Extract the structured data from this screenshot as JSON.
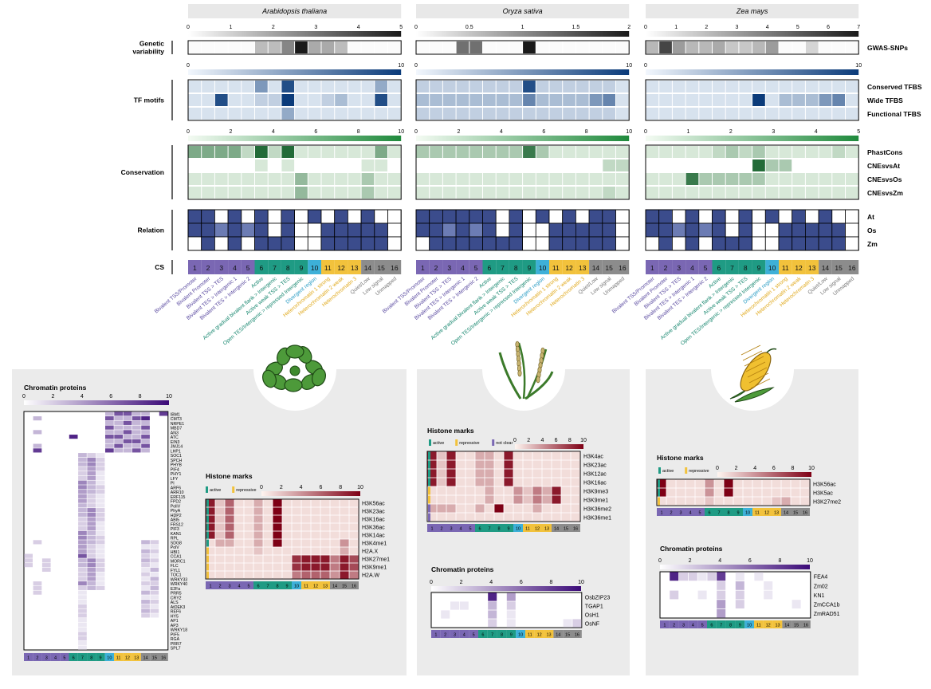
{
  "species": [
    {
      "name": "Arabidopsis thaliana",
      "gwas_ticks": [
        "0",
        "1",
        "2",
        "3",
        "4",
        "5"
      ],
      "gwas_max": 6,
      "gwas": [
        0,
        0,
        0,
        0,
        0,
        1.5,
        1.5,
        3,
        6,
        2,
        2,
        1.5,
        0,
        0,
        0,
        0
      ],
      "tf_ticks": [
        "0",
        "10"
      ],
      "tf": [
        [
          1,
          1,
          1,
          1,
          1,
          5,
          1,
          9,
          1,
          1,
          1,
          1,
          1,
          1,
          4,
          1
        ],
        [
          1,
          1,
          9,
          1,
          1,
          2,
          2,
          10,
          1,
          1,
          2,
          3,
          1,
          1,
          9,
          1
        ],
        [
          1,
          1,
          1,
          1,
          1,
          1,
          1,
          4,
          1,
          1,
          1,
          1,
          1,
          1,
          1,
          1
        ]
      ],
      "cons_ticks": [
        "0",
        "2",
        "4",
        "6",
        "8",
        "10"
      ],
      "cons": [
        [
          5,
          5,
          5,
          5,
          2,
          9,
          2,
          9,
          1,
          1,
          1,
          1,
          1,
          1,
          5,
          1
        ],
        [
          0,
          0,
          0,
          0,
          0,
          1,
          0,
          1,
          0,
          0,
          0,
          0,
          0,
          1,
          1,
          0
        ],
        [
          1,
          1,
          1,
          1,
          1,
          1,
          1,
          1,
          4,
          1,
          1,
          1,
          1,
          3,
          1,
          1
        ],
        [
          1,
          1,
          1,
          1,
          1,
          1,
          1,
          1,
          4,
          1,
          1,
          1,
          1,
          3,
          1,
          1
        ]
      ],
      "relation": [
        [
          1,
          1,
          0,
          1,
          0,
          1,
          0,
          1,
          0,
          1,
          0,
          1,
          0,
          1,
          0,
          0
        ],
        [
          1,
          1,
          0.5,
          1,
          0.5,
          1,
          0,
          1,
          0,
          0,
          1,
          1,
          1,
          1,
          1,
          0
        ],
        [
          0,
          1,
          0,
          1,
          0,
          1,
          1,
          1,
          0,
          0,
          1,
          1,
          1,
          1,
          1,
          0
        ]
      ]
    },
    {
      "name": "Oryza sativa",
      "gwas_ticks": [
        "0",
        "0.5",
        "1",
        "1.5",
        "2"
      ],
      "gwas_max": 2.5,
      "gwas": [
        0,
        0,
        0,
        1.5,
        1.5,
        0,
        0,
        0,
        6,
        0,
        0,
        0,
        0,
        0,
        0,
        0
      ],
      "tf_ticks": [
        "0",
        "10"
      ],
      "tf": [
        [
          2,
          2,
          2,
          2,
          2,
          2,
          2,
          2,
          9,
          2,
          2,
          2,
          2,
          2,
          2,
          1
        ],
        [
          3,
          3,
          3,
          3,
          3,
          3,
          3,
          3,
          6,
          3,
          3,
          3,
          3,
          5,
          6,
          1
        ],
        [
          2,
          2,
          2,
          2,
          2,
          2,
          2,
          2,
          2,
          2,
          2,
          2,
          2,
          2,
          2,
          1
        ]
      ],
      "cons_ticks": [
        "0",
        "2",
        "4",
        "6",
        "8",
        "10"
      ],
      "cons": [
        [
          3,
          3,
          3,
          3,
          3,
          3,
          3,
          3,
          8,
          3,
          1,
          1,
          1,
          1,
          1,
          1
        ],
        [
          0,
          0,
          0,
          0,
          0,
          0,
          0,
          0,
          0,
          0,
          0,
          0,
          0,
          0,
          2,
          2
        ],
        [
          1,
          1,
          1,
          1,
          1,
          1,
          1,
          1,
          1,
          1,
          1,
          1,
          1,
          1,
          1,
          1
        ],
        [
          1,
          1,
          1,
          1,
          1,
          1,
          1,
          1,
          1,
          1,
          1,
          1,
          1,
          1,
          2,
          1
        ]
      ],
      "relation": [
        [
          1,
          1,
          1,
          1,
          1,
          1,
          0,
          1,
          0,
          1,
          0,
          1,
          0,
          1,
          1,
          0
        ],
        [
          1,
          1,
          0.5,
          1,
          0.5,
          1,
          0,
          1,
          0,
          0,
          1,
          1,
          1,
          1,
          1,
          0
        ],
        [
          0,
          1,
          1,
          1,
          1,
          1,
          1,
          1,
          0,
          0,
          1,
          1,
          1,
          1,
          1,
          0
        ]
      ]
    },
    {
      "name": "Zea mays",
      "gwas_ticks": [
        "0",
        "1",
        "2",
        "3",
        "4",
        "5",
        "6",
        "7"
      ],
      "gwas_max": 7.5,
      "gwas": [
        2,
        6,
        3,
        2,
        2,
        2.5,
        1.5,
        1.5,
        2,
        3,
        0,
        0,
        1,
        0,
        0,
        0
      ],
      "tf_ticks": [
        "0",
        "10"
      ],
      "tf": [
        [
          1,
          1,
          1,
          1,
          1,
          1,
          1,
          1,
          1,
          1,
          1,
          1,
          1,
          1,
          1,
          1
        ],
        [
          1,
          1,
          1,
          1,
          1,
          1,
          1,
          1,
          10,
          1,
          3,
          3,
          3,
          5,
          6,
          1
        ],
        [
          1,
          1,
          1,
          1,
          1,
          1,
          1,
          1,
          1,
          1,
          1,
          1,
          1,
          1,
          1,
          1
        ]
      ],
      "cons_ticks": [
        "0",
        "1",
        "2",
        "3",
        "4",
        "5"
      ],
      "cons": [
        [
          1,
          1,
          1,
          1,
          1,
          2,
          3,
          2,
          3,
          1,
          1,
          1,
          1,
          1,
          2,
          1
        ],
        [
          0,
          0,
          0,
          0,
          0,
          0,
          0,
          0,
          9,
          3,
          3,
          0,
          0,
          0,
          0,
          0
        ],
        [
          1,
          1,
          1,
          8,
          3,
          3,
          3,
          3,
          3,
          1,
          1,
          1,
          1,
          1,
          1,
          1
        ],
        [
          1,
          1,
          1,
          1,
          1,
          1,
          1,
          1,
          1,
          1,
          1,
          1,
          1,
          1,
          1,
          1
        ]
      ],
      "relation": [
        [
          1,
          1,
          0,
          1,
          0,
          1,
          0,
          1,
          0,
          1,
          0,
          1,
          0,
          1,
          0,
          0
        ],
        [
          1,
          1,
          0.5,
          1,
          0.5,
          1,
          0,
          1,
          0,
          0,
          1,
          1,
          1,
          1,
          1,
          0
        ],
        [
          0,
          1,
          0,
          1,
          0,
          1,
          1,
          1,
          0,
          0,
          1,
          1,
          1,
          1,
          1,
          0
        ]
      ]
    }
  ],
  "row_groups": {
    "genetic": "Genetic\nvariability",
    "tf": "TF motifs",
    "cons": "Conservation",
    "relation": "Relation",
    "cs": "CS"
  },
  "right_labels": {
    "gwas": "GWAS-SNPs",
    "tf": [
      "Conserved TFBS",
      "Wide TFBS",
      "Functional TFBS"
    ],
    "cons": [
      "PhastCons",
      "CNEsvsAt",
      "CNEsvsOs",
      "CNEsvsZm"
    ],
    "relation": [
      "At",
      "Os",
      "Zm"
    ]
  },
  "states": [
    {
      "num": "1",
      "label": "Bivalent TSS/Promoter"
    },
    {
      "num": "2",
      "label": "Bivalent Promoter"
    },
    {
      "num": "3",
      "label": "Bivalent TSS > TES"
    },
    {
      "num": "4",
      "label": "Bivalent TES > Intergenic 1"
    },
    {
      "num": "5",
      "label": "Bivalent TES > Intergenic 2"
    },
    {
      "num": "6",
      "label": "Active"
    },
    {
      "num": "7",
      "label": "Active gradual bivalent flank > Intergenic"
    },
    {
      "num": "8",
      "label": "Active weak TSS > TES"
    },
    {
      "num": "9",
      "label": "Open TES/Intergenic > repressed Intergenic"
    },
    {
      "num": "10",
      "label": "Divergent region"
    },
    {
      "num": "11",
      "label": "Heterochromatin 1 strong"
    },
    {
      "num": "12",
      "label": "Heterochromatin 2 weak"
    },
    {
      "num": "13",
      "label": "Heterochromatin 3"
    },
    {
      "num": "14",
      "label": "Quiet/Low"
    },
    {
      "num": "15",
      "label": "Low signal"
    },
    {
      "num": "16",
      "label": "Unmapped"
    }
  ],
  "state_colors": [
    "#7a67b3",
    "#7a67b3",
    "#7a67b3",
    "#7a67b3",
    "#7a67b3",
    "#1f9b84",
    "#1f9b84",
    "#1f9b84",
    "#1f9b84",
    "#3db0d8",
    "#f2c23c",
    "#f2c23c",
    "#f2c23c",
    "#8c8c8c",
    "#8c8c8c",
    "#8c8c8c"
  ],
  "label_colors": [
    "#5a4aa0",
    "#5a4aa0",
    "#5a4aa0",
    "#5a4aa0",
    "#5a4aa0",
    "#17876f",
    "#17876f",
    "#17876f",
    "#17876f",
    "#2a9cc4",
    "#e0a91c",
    "#e0a91c",
    "#e0a91c",
    "#777777",
    "#777777",
    "#777777"
  ],
  "legend": {
    "active": "active",
    "repressive": "repressive",
    "not_clear": "not clear"
  },
  "at_histone": {
    "title": "Histone marks",
    "ticks": [
      "0",
      "2",
      "4",
      "6",
      "8",
      "10"
    ],
    "marks": [
      "H3K56ac",
      "H3K23ac",
      "H3K16ac",
      "H3K36ac",
      "H3K14ac",
      "H3K4me1",
      "H2A.X",
      "H3K27me1",
      "H3K9me1",
      "H2A.W"
    ],
    "type": [
      "a",
      "a",
      "a",
      "a",
      "a",
      "a",
      "r",
      "r",
      "r",
      "r"
    ],
    "values": [
      [
        9,
        2,
        6,
        1,
        1,
        3,
        1,
        10,
        1,
        1,
        1,
        1,
        1,
        1,
        1,
        1
      ],
      [
        9,
        2,
        6,
        1,
        1,
        3,
        1,
        10,
        1,
        1,
        1,
        1,
        1,
        1,
        1,
        1
      ],
      [
        9,
        2,
        6,
        1,
        1,
        3,
        1,
        10,
        1,
        1,
        1,
        1,
        1,
        1,
        1,
        1
      ],
      [
        9,
        2,
        6,
        1,
        1,
        3,
        1,
        10,
        1,
        1,
        1,
        1,
        1,
        1,
        1,
        1
      ],
      [
        9,
        2,
        6,
        1,
        1,
        3,
        1,
        10,
        1,
        1,
        1,
        1,
        1,
        1,
        1,
        1
      ],
      [
        1,
        3,
        3,
        1,
        1,
        3,
        1,
        10,
        1,
        1,
        1,
        1,
        1,
        1,
        4,
        1
      ],
      [
        1,
        1,
        1,
        1,
        1,
        2,
        1,
        1,
        1,
        1,
        1,
        1,
        1,
        1,
        3,
        1
      ],
      [
        1,
        1,
        1,
        1,
        1,
        1,
        1,
        1,
        1,
        8,
        9,
        9,
        9,
        5,
        9,
        7
      ],
      [
        1,
        1,
        1,
        1,
        1,
        1,
        1,
        1,
        1,
        8,
        9,
        9,
        9,
        5,
        9,
        7
      ],
      [
        1,
        1,
        1,
        1,
        1,
        1,
        1,
        1,
        1,
        5,
        6,
        6,
        6,
        4,
        9,
        5
      ]
    ]
  },
  "at_chromatin": {
    "title": "Chromatin proteins",
    "ticks": [
      "0",
      "2",
      "4",
      "6",
      "8",
      "10"
    ],
    "proteins": [
      "IBM1",
      "CMT3",
      "NRPE1",
      "MBD7",
      "AN3",
      "ATC",
      "EIN3",
      "JMJ14",
      "LHP1",
      "SOC1",
      "SPCH",
      "PHYB",
      "PIF4",
      "PHY1",
      "LFY",
      "PI",
      "ARF6",
      "ARR10",
      "ERF115",
      "FPD2",
      "PolIV",
      "PhyA",
      "HDP2",
      "ABI5",
      "FRS12",
      "PIF3",
      "KAN1",
      "RPL",
      "SDG8",
      "PolV",
      "HBI1",
      "CCA1",
      "MORC1",
      "FLC",
      "FYL1",
      "TOC1",
      "WRKY33",
      "WRKY40",
      "E2Fa",
      "PRR5",
      "CRY2",
      "ALS",
      "AtDEK3",
      "REF6",
      "HY5",
      "AP1",
      "AP3",
      "WRKY18",
      "PIF5",
      "RGA",
      "PRR7",
      "SPL7"
    ]
  },
  "os_histone": {
    "title": "Histone marks",
    "ticks": [
      "0",
      "2",
      "4",
      "6",
      "8",
      "10"
    ],
    "marks": [
      "H3K4ac",
      "H3K23ac",
      "H3K12ac",
      "H3K16ac",
      "H3K9me3",
      "H3K9me1",
      "H3K36me2",
      "H3K36me1"
    ],
    "type": [
      "a",
      "a",
      "a",
      "a",
      "r",
      "r",
      "n",
      "n"
    ],
    "values": [
      [
        9,
        2,
        9,
        1,
        1,
        3,
        3,
        1,
        9,
        1,
        1,
        1,
        1,
        1,
        1,
        1
      ],
      [
        9,
        2,
        9,
        1,
        1,
        3,
        3,
        1,
        9,
        1,
        1,
        1,
        1,
        1,
        1,
        1
      ],
      [
        9,
        2,
        9,
        1,
        1,
        3,
        3,
        1,
        9,
        1,
        1,
        1,
        1,
        1,
        1,
        1
      ],
      [
        9,
        2,
        9,
        1,
        1,
        3,
        3,
        1,
        9,
        1,
        1,
        1,
        1,
        1,
        1,
        1
      ],
      [
        1,
        1,
        1,
        1,
        1,
        1,
        3,
        1,
        1,
        4,
        2,
        5,
        3,
        9,
        1,
        1
      ],
      [
        1,
        1,
        1,
        1,
        1,
        1,
        3,
        1,
        1,
        4,
        2,
        5,
        3,
        9,
        1,
        1
      ],
      [
        3,
        3,
        3,
        1,
        1,
        3,
        1,
        10,
        1,
        1,
        1,
        3,
        1,
        1,
        1,
        1
      ],
      [
        1,
        1,
        1,
        1,
        1,
        1,
        1,
        1,
        1,
        1,
        1,
        1,
        1,
        1,
        1,
        1
      ]
    ]
  },
  "os_chromatin": {
    "title": "Chromatin proteins",
    "ticks": [
      "0",
      "2",
      "4",
      "6",
      "8",
      "10"
    ],
    "proteins": [
      "OsbZIP23",
      "TGAP1",
      "OsH1",
      "OsNF"
    ],
    "values": [
      [
        0,
        0,
        0,
        0,
        0,
        0,
        9,
        0,
        4,
        0,
        0,
        0,
        0,
        0,
        0,
        0
      ],
      [
        0,
        0,
        1,
        1,
        0,
        0,
        3,
        0,
        2,
        0,
        0,
        0,
        0,
        0,
        0,
        0
      ],
      [
        0,
        1,
        0,
        0,
        0,
        0,
        3,
        0,
        1,
        0,
        0,
        0,
        0,
        0,
        0,
        0
      ],
      [
        0,
        0,
        0,
        0,
        0,
        0,
        2,
        0,
        1,
        0,
        0,
        0,
        0,
        0,
        1,
        2
      ]
    ]
  },
  "zm_histone": {
    "title": "Histone marks",
    "ticks": [
      "0",
      "2",
      "4",
      "6",
      "8",
      "10"
    ],
    "marks": [
      "H3K56ac",
      "H3K5ac",
      "H3K27me2"
    ],
    "type": [
      "a",
      "a",
      "r"
    ],
    "values": [
      [
        10,
        1,
        1,
        1,
        1,
        4,
        1,
        10,
        1,
        1,
        1,
        1,
        1,
        1,
        1,
        1
      ],
      [
        10,
        1,
        1,
        1,
        1,
        4,
        1,
        10,
        1,
        1,
        1,
        1,
        1,
        1,
        1,
        1
      ],
      [
        1,
        1,
        1,
        1,
        1,
        2,
        1,
        1,
        1,
        1,
        1,
        1,
        2,
        3,
        1,
        1
      ]
    ]
  },
  "zm_chromatin": {
    "title": "Chromatin proteins",
    "ticks": [
      "0",
      "2",
      "4",
      "6",
      "8",
      "10"
    ],
    "proteins": [
      "FEA4",
      "Zm02",
      "KN1",
      "ZmCCA1b",
      "ZmRAD51"
    ],
    "values": [
      [
        0,
        9,
        2,
        2,
        1,
        2,
        8,
        0,
        1,
        0,
        1,
        0,
        0,
        0,
        0,
        0
      ],
      [
        0,
        0,
        0,
        0,
        0,
        0,
        2,
        0,
        3,
        0,
        0,
        1,
        0,
        0,
        0,
        0
      ],
      [
        0,
        2,
        0,
        0,
        1,
        0,
        2,
        0,
        2,
        0,
        0,
        1,
        0,
        0,
        0,
        0
      ],
      [
        0,
        0,
        0,
        0,
        0,
        0,
        4,
        0,
        2,
        0,
        0,
        0,
        0,
        0,
        1,
        0
      ],
      [
        0,
        0,
        0,
        0,
        0,
        0,
        4,
        0,
        0,
        0,
        0,
        0,
        0,
        0,
        0,
        0
      ]
    ]
  }
}
